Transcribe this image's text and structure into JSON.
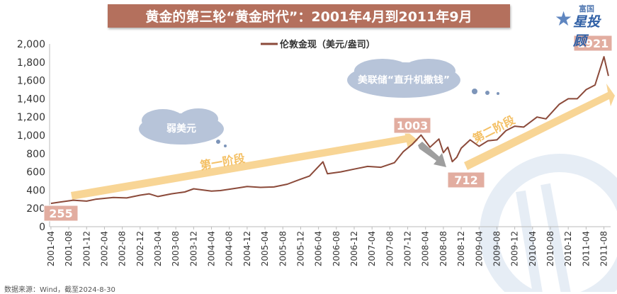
{
  "title": "黄金的第三轮“黄金时代”：2001年4月到2011年9月",
  "logo": {
    "top": "富国",
    "bottom": "星投顾"
  },
  "footer": "数据来源：Wind，截至2024-8-30",
  "colors": {
    "line": "#8b4a3a",
    "arrow": "#f7d089",
    "label_bg": "#e2ada0",
    "cloud": "#b7c4d9",
    "title_bg": "#b4705d",
    "gray_arrow": "#9e9e9e"
  },
  "annotations": {
    "c255": "255",
    "c1003": "1003",
    "c712": "712",
    "c1921": "1921",
    "stage1": "第一阶段",
    "stage2": "第二阶段",
    "cloud1": "弱美元",
    "cloud2": "美联储“直升机撒钱”"
  },
  "chart_data": {
    "type": "line",
    "title": "黄金的第三轮“黄金时代”：2001年4月到2011年9月",
    "series": [
      {
        "name": "伦敦金现（美元/盎司）"
      }
    ],
    "ylim": [
      0,
      2000
    ],
    "yticks": [
      "0",
      "200",
      "400",
      "600",
      "800",
      "1,000",
      "1,200",
      "1,400",
      "1,600",
      "1,800",
      "2,000"
    ],
    "xticks": [
      "2001-04",
      "2001-08",
      "2001-12",
      "2002-04",
      "2002-08",
      "2002-12",
      "2003-04",
      "2003-08",
      "2003-12",
      "2004-04",
      "2004-08",
      "2004-12",
      "2005-04",
      "2005-08",
      "2005-12",
      "2006-04",
      "2006-08",
      "2006-12",
      "2007-04",
      "2007-08",
      "2007-12",
      "2008-04",
      "2008-08",
      "2008-12",
      "2009-04",
      "2009-08",
      "2009-12",
      "2010-04",
      "2010-08",
      "2010-12",
      "2011-04",
      "2011-08"
    ],
    "x": [
      "2001-04",
      "2001-06",
      "2001-09",
      "2001-12",
      "2002-02",
      "2002-06",
      "2002-09",
      "2002-12",
      "2003-02",
      "2003-04",
      "2003-07",
      "2003-10",
      "2003-12",
      "2004-04",
      "2004-06",
      "2004-10",
      "2004-12",
      "2005-03",
      "2005-06",
      "2005-09",
      "2005-12",
      "2006-02",
      "2006-05",
      "2006-06",
      "2006-09",
      "2006-12",
      "2007-03",
      "2007-06",
      "2007-09",
      "2007-11",
      "2008-01",
      "2008-03",
      "2008-05",
      "2008-07",
      "2008-08",
      "2008-09",
      "2008-10",
      "2008-11",
      "2008-12",
      "2009-02",
      "2009-04",
      "2009-06",
      "2009-08",
      "2009-10",
      "2009-12",
      "2010-02",
      "2010-05",
      "2010-07",
      "2010-10",
      "2010-12",
      "2011-02",
      "2011-04",
      "2011-06",
      "2011-08",
      "2011-09"
    ],
    "values": [
      255,
      270,
      290,
      280,
      300,
      320,
      315,
      345,
      360,
      330,
      360,
      380,
      415,
      390,
      395,
      425,
      440,
      430,
      435,
      465,
      520,
      555,
      710,
      580,
      600,
      630,
      660,
      650,
      700,
      820,
      900,
      1003,
      870,
      960,
      810,
      870,
      712,
      760,
      860,
      950,
      880,
      940,
      950,
      1050,
      1100,
      1090,
      1200,
      1180,
      1340,
      1400,
      1400,
      1500,
      1550,
      1860,
      1650
    ],
    "xlabel": "",
    "ylabel": "",
    "grid": false,
    "legend": "top-center"
  }
}
